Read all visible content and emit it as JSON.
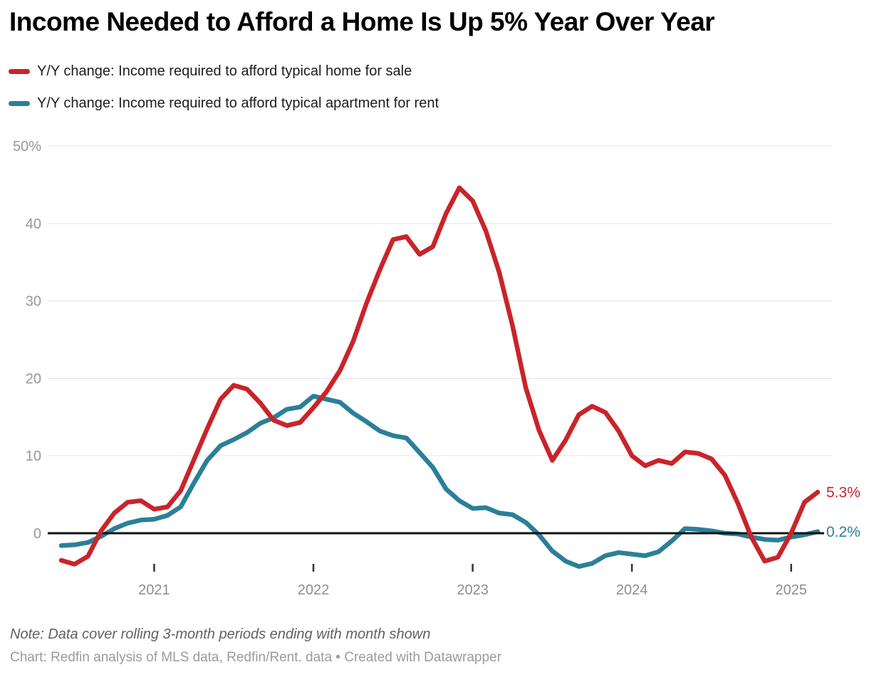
{
  "header": {
    "title": "Income Needed to Afford a Home Is Up 5% Year Over Year"
  },
  "legend": {
    "items": [
      {
        "id": "home-sale",
        "label": "Y/Y change: Income required to afford typical home for sale",
        "color": "#c9242a"
      },
      {
        "id": "apartment-rent",
        "label": "Y/Y change: Income required to afford typical apartment for rent",
        "color": "#2b7f99"
      }
    ]
  },
  "footer": {
    "note": "Note: Data cover rolling 3-month periods ending with month shown",
    "credit": "Chart: Redfin analysis of MLS data, Redfin/Rent. data • Created with Datawrapper"
  },
  "colors": {
    "gridline": "#e3e3e3",
    "zero_line": "#111111",
    "y_tick_label": "#979797",
    "x_tick_label": "#8e8e8e",
    "x_tick_mark": "#333333"
  },
  "chart_data": {
    "type": "line",
    "title": "Income Needed to Afford a Home Is Up 5% Year Over Year",
    "grid": "horizontal",
    "legend_position": "top",
    "ylim": [
      -5,
      52
    ],
    "y_ticks": [
      0,
      10,
      20,
      30,
      40,
      50
    ],
    "y_tick_labels": [
      "0",
      "10",
      "20",
      "30",
      "40",
      "50%"
    ],
    "x_tick_labels": [
      "2021",
      "2022",
      "2023",
      "2024",
      "2025"
    ],
    "x_tick_month_indices": [
      7,
      19,
      31,
      43,
      55
    ],
    "x": [
      "2020-06",
      "2020-07",
      "2020-08",
      "2020-09",
      "2020-10",
      "2020-11",
      "2020-12",
      "2021-01",
      "2021-02",
      "2021-03",
      "2021-04",
      "2021-05",
      "2021-06",
      "2021-07",
      "2021-08",
      "2021-09",
      "2021-10",
      "2021-11",
      "2021-12",
      "2022-01",
      "2022-02",
      "2022-03",
      "2022-04",
      "2022-05",
      "2022-06",
      "2022-07",
      "2022-08",
      "2022-09",
      "2022-10",
      "2022-11",
      "2022-12",
      "2023-01",
      "2023-02",
      "2023-03",
      "2023-04",
      "2023-05",
      "2023-06",
      "2023-07",
      "2023-08",
      "2023-09",
      "2023-10",
      "2023-11",
      "2023-12",
      "2024-01",
      "2024-02",
      "2024-03",
      "2024-04",
      "2024-05",
      "2024-06",
      "2024-07",
      "2024-08",
      "2024-09",
      "2024-10",
      "2024-11",
      "2024-12",
      "2025-01",
      "2025-02",
      "2025-03"
    ],
    "series": [
      {
        "name": "Y/Y change: Income required to afford typical home for sale",
        "id": "home-sale",
        "color": "#c9242a",
        "end_label": "5.3%",
        "values": [
          -3.5,
          -4.0,
          -3.0,
          0.3,
          2.6,
          4.0,
          4.2,
          3.1,
          3.4,
          5.5,
          9.5,
          13.5,
          17.3,
          19.1,
          18.6,
          16.8,
          14.6,
          13.9,
          14.3,
          16.2,
          18.3,
          21.0,
          24.8,
          29.7,
          34.0,
          37.9,
          38.3,
          36.0,
          37.0,
          41.3,
          44.6,
          42.9,
          39.0,
          33.7,
          26.8,
          18.8,
          13.3,
          9.4,
          12.0,
          15.3,
          16.4,
          15.6,
          13.2,
          10.0,
          8.7,
          9.4,
          9.0,
          10.5,
          10.3,
          9.6,
          7.5,
          3.8,
          -0.5,
          -3.6,
          -3.1,
          0.0,
          4.0,
          5.3
        ]
      },
      {
        "name": "Y/Y change: Income required to afford typical apartment for rent",
        "id": "apartment-rent",
        "color": "#2b7f99",
        "end_label": "0.2%",
        "values": [
          -1.6,
          -1.5,
          -1.2,
          -0.4,
          0.6,
          1.3,
          1.7,
          1.8,
          2.3,
          3.4,
          6.5,
          9.4,
          11.3,
          12.1,
          13.0,
          14.2,
          14.9,
          16.0,
          16.3,
          17.7,
          17.3,
          16.9,
          15.5,
          14.4,
          13.2,
          12.6,
          12.3,
          10.4,
          8.5,
          5.7,
          4.2,
          3.2,
          3.3,
          2.6,
          2.4,
          1.4,
          -0.2,
          -2.3,
          -3.6,
          -4.3,
          -3.9,
          -2.9,
          -2.5,
          -2.7,
          -2.9,
          -2.4,
          -1.0,
          0.6,
          0.5,
          0.3,
          0.0,
          -0.1,
          -0.5,
          -0.8,
          -0.9,
          -0.5,
          -0.2,
          0.2
        ]
      }
    ]
  }
}
